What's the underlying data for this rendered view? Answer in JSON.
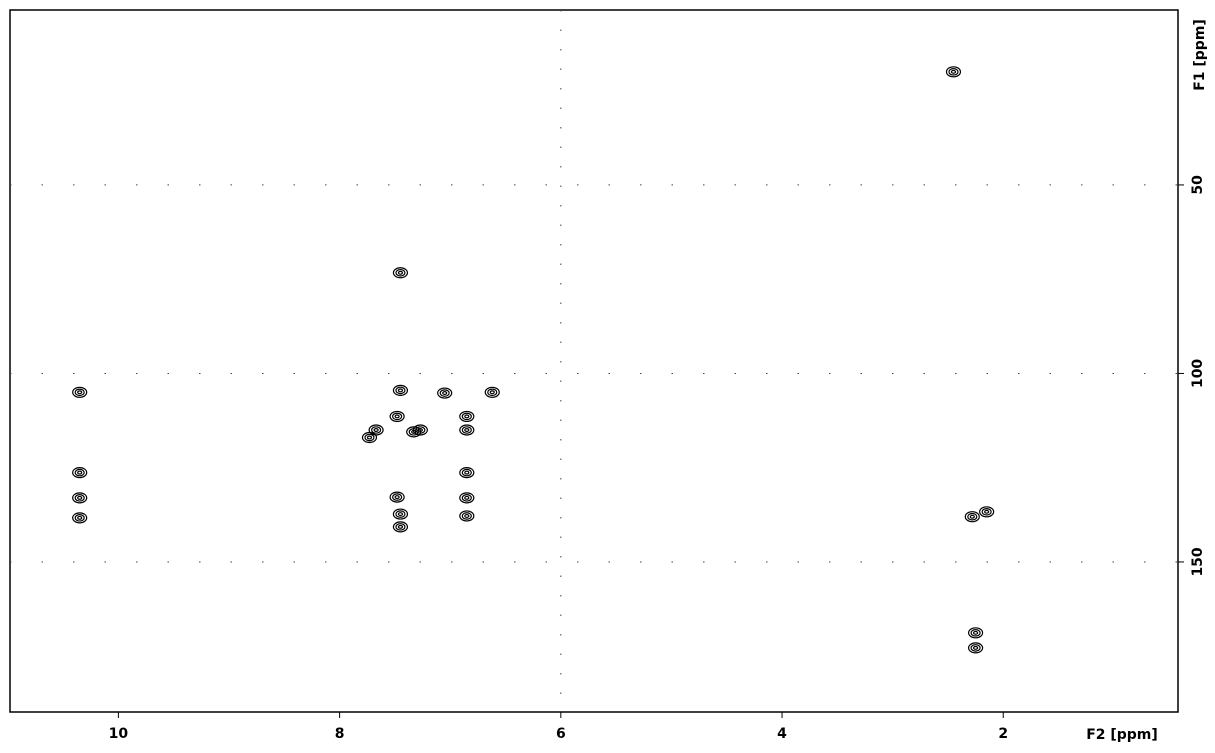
{
  "chart_data": {
    "type": "contour",
    "xlabel": "F2 [ppm]",
    "ylabel": "F1 [ppm]",
    "xlim": [
      10.98,
      0.42
    ],
    "ylim": [
      3.6,
      189.8
    ],
    "xticks": [
      10,
      8,
      6,
      4,
      2
    ],
    "yticks": [
      50,
      100,
      150
    ],
    "xgrid": [
      6
    ],
    "grid": true,
    "color": "#000000",
    "x": [
      2.45,
      7.45,
      7.45,
      7.05,
      6.62,
      10.35,
      7.48,
      6.85,
      6.85,
      7.67,
      7.73,
      7.33,
      7.27,
      10.35,
      6.85,
      10.35,
      7.48,
      6.85,
      7.45,
      6.85,
      10.35,
      7.45,
      2.28,
      2.15,
      2.25,
      2.25
    ],
    "y": [
      20,
      73.3,
      104.5,
      105.2,
      105,
      105,
      111.4,
      111.4,
      115,
      115,
      117,
      115.5,
      115,
      126.3,
      126.3,
      133,
      132.8,
      133,
      137.3,
      137.8,
      138.3,
      140.7,
      138,
      136.7,
      168.8,
      172.8
    ]
  }
}
